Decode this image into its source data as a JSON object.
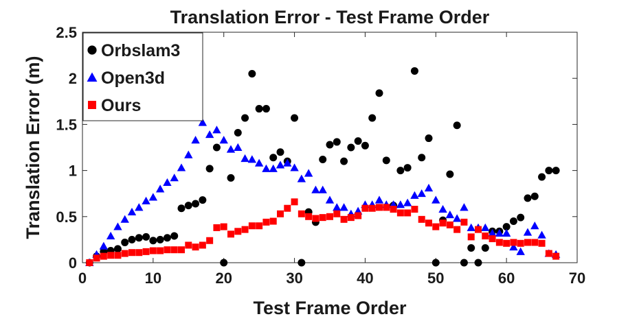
{
  "chart_data": {
    "type": "scatter",
    "title": "Translation Error - Test Frame Order",
    "xlabel": "Test Frame Order",
    "ylabel": "Translation Error (m)",
    "xlim": [
      0,
      70
    ],
    "ylim": [
      0,
      2.5
    ],
    "xticks": [
      "0",
      "10",
      "20",
      "30",
      "40",
      "50",
      "60",
      "70"
    ],
    "yticks": [
      "0",
      "0.5",
      "1",
      "1.5",
      "2",
      "2.5"
    ],
    "grid": false,
    "legend_position": "top-left",
    "series": [
      {
        "name": "Orbslam3",
        "color": "#000000",
        "marker": "circle",
        "points": [
          [
            1,
            0.0
          ],
          [
            2,
            0.07
          ],
          [
            3,
            0.12
          ],
          [
            4,
            0.13
          ],
          [
            5,
            0.15
          ],
          [
            6,
            0.22
          ],
          [
            7,
            0.25
          ],
          [
            8,
            0.27
          ],
          [
            9,
            0.28
          ],
          [
            10,
            0.24
          ],
          [
            11,
            0.25
          ],
          [
            12,
            0.27
          ],
          [
            13,
            0.29
          ],
          [
            14,
            0.59
          ],
          [
            15,
            0.62
          ],
          [
            16,
            0.64
          ],
          [
            17,
            0.68
          ],
          [
            18,
            1.02
          ],
          [
            19,
            1.25
          ],
          [
            20,
            0.0
          ],
          [
            21,
            0.92
          ],
          [
            22,
            1.41
          ],
          [
            23,
            1.57
          ],
          [
            24,
            2.05
          ],
          [
            25,
            1.67
          ],
          [
            26,
            1.67
          ],
          [
            27,
            1.14
          ],
          [
            28,
            1.2
          ],
          [
            29,
            1.1
          ],
          [
            30,
            1.57
          ],
          [
            31,
            0.0
          ],
          [
            32,
            0.55
          ],
          [
            33,
            0.44
          ],
          [
            34,
            1.12
          ],
          [
            35,
            1.28
          ],
          [
            36,
            1.31
          ],
          [
            37,
            1.1
          ],
          [
            38,
            1.25
          ],
          [
            39,
            1.32
          ],
          [
            40,
            1.27
          ],
          [
            41,
            1.57
          ],
          [
            42,
            1.84
          ],
          [
            43,
            1.11
          ],
          [
            44,
            0.62
          ],
          [
            45,
            1.0
          ],
          [
            46,
            1.03
          ],
          [
            47,
            2.08
          ],
          [
            48,
            1.14
          ],
          [
            49,
            1.35
          ],
          [
            50,
            0.0
          ],
          [
            51,
            0.46
          ],
          [
            52,
            0.96
          ],
          [
            53,
            1.49
          ],
          [
            54,
            0.0
          ],
          [
            55,
            0.16
          ],
          [
            56,
            0.0
          ],
          [
            57,
            0.16
          ],
          [
            58,
            0.34
          ],
          [
            59,
            0.34
          ],
          [
            60,
            0.39
          ],
          [
            61,
            0.45
          ],
          [
            62,
            0.49
          ],
          [
            63,
            0.7
          ],
          [
            64,
            0.72
          ],
          [
            65,
            0.93
          ],
          [
            66,
            1.0
          ],
          [
            67,
            1.0
          ]
        ]
      },
      {
        "name": "Open3d",
        "color": "#0000ff",
        "marker": "triangle",
        "points": [
          [
            1,
            0.0
          ],
          [
            2,
            0.09
          ],
          [
            3,
            0.18
          ],
          [
            4,
            0.29
          ],
          [
            5,
            0.39
          ],
          [
            6,
            0.47
          ],
          [
            7,
            0.55
          ],
          [
            8,
            0.6
          ],
          [
            9,
            0.67
          ],
          [
            10,
            0.71
          ],
          [
            11,
            0.8
          ],
          [
            12,
            0.87
          ],
          [
            13,
            0.92
          ],
          [
            14,
            1.03
          ],
          [
            15,
            1.17
          ],
          [
            16,
            1.33
          ],
          [
            17,
            1.52
          ],
          [
            18,
            1.39
          ],
          [
            19,
            1.44
          ],
          [
            20,
            1.33
          ],
          [
            21,
            1.23
          ],
          [
            22,
            1.25
          ],
          [
            23,
            1.13
          ],
          [
            24,
            1.12
          ],
          [
            25,
            1.08
          ],
          [
            26,
            1.02
          ],
          [
            27,
            1.02
          ],
          [
            28,
            1.06
          ],
          [
            29,
            1.08
          ],
          [
            30,
            1.03
          ],
          [
            31,
            0.91
          ],
          [
            32,
            0.97
          ],
          [
            33,
            0.79
          ],
          [
            34,
            0.79
          ],
          [
            35,
            0.68
          ],
          [
            36,
            0.6
          ],
          [
            37,
            0.6
          ],
          [
            38,
            0.53
          ],
          [
            39,
            0.56
          ],
          [
            40,
            0.63
          ],
          [
            41,
            0.63
          ],
          [
            42,
            0.68
          ],
          [
            43,
            0.63
          ],
          [
            44,
            0.63
          ],
          [
            45,
            0.63
          ],
          [
            46,
            0.65
          ],
          [
            47,
            0.73
          ],
          [
            48,
            0.75
          ],
          [
            49,
            0.81
          ],
          [
            50,
            0.68
          ],
          [
            51,
            0.58
          ],
          [
            52,
            0.52
          ],
          [
            53,
            0.48
          ],
          [
            54,
            0.6
          ],
          [
            55,
            0.38
          ],
          [
            56,
            0.38
          ],
          [
            57,
            0.38
          ],
          [
            58,
            0.32
          ],
          [
            59,
            0.32
          ],
          [
            60,
            0.32
          ],
          [
            61,
            0.17
          ],
          [
            62,
            0.12
          ],
          [
            63,
            0.33
          ],
          [
            64,
            0.4
          ],
          [
            65,
            0.3
          ],
          [
            66,
            0.1
          ],
          [
            67,
            0.09
          ]
        ]
      },
      {
        "name": "Ours",
        "color": "#ff0000",
        "marker": "square",
        "points": [
          [
            1,
            0.0
          ],
          [
            2,
            0.05
          ],
          [
            3,
            0.07
          ],
          [
            4,
            0.08
          ],
          [
            5,
            0.08
          ],
          [
            6,
            0.1
          ],
          [
            7,
            0.11
          ],
          [
            8,
            0.11
          ],
          [
            9,
            0.12
          ],
          [
            10,
            0.13
          ],
          [
            11,
            0.13
          ],
          [
            12,
            0.14
          ],
          [
            13,
            0.14
          ],
          [
            14,
            0.14
          ],
          [
            15,
            0.19
          ],
          [
            16,
            0.17
          ],
          [
            17,
            0.19
          ],
          [
            18,
            0.24
          ],
          [
            19,
            0.38
          ],
          [
            20,
            0.39
          ],
          [
            21,
            0.31
          ],
          [
            22,
            0.34
          ],
          [
            23,
            0.36
          ],
          [
            24,
            0.4
          ],
          [
            25,
            0.4
          ],
          [
            26,
            0.44
          ],
          [
            27,
            0.45
          ],
          [
            28,
            0.53
          ],
          [
            29,
            0.59
          ],
          [
            30,
            0.66
          ],
          [
            31,
            0.53
          ],
          [
            32,
            0.5
          ],
          [
            33,
            0.48
          ],
          [
            34,
            0.49
          ],
          [
            35,
            0.5
          ],
          [
            36,
            0.53
          ],
          [
            37,
            0.47
          ],
          [
            38,
            0.49
          ],
          [
            39,
            0.51
          ],
          [
            40,
            0.59
          ],
          [
            41,
            0.59
          ],
          [
            42,
            0.6
          ],
          [
            43,
            0.6
          ],
          [
            44,
            0.58
          ],
          [
            45,
            0.54
          ],
          [
            46,
            0.54
          ],
          [
            47,
            0.58
          ],
          [
            48,
            0.47
          ],
          [
            49,
            0.43
          ],
          [
            50,
            0.39
          ],
          [
            51,
            0.43
          ],
          [
            52,
            0.41
          ],
          [
            53,
            0.36
          ],
          [
            54,
            0.44
          ],
          [
            55,
            0.28
          ],
          [
            56,
            0.36
          ],
          [
            57,
            0.29
          ],
          [
            58,
            0.26
          ],
          [
            59,
            0.22
          ],
          [
            60,
            0.21
          ],
          [
            61,
            0.22
          ],
          [
            62,
            0.21
          ],
          [
            63,
            0.22
          ],
          [
            64,
            0.22
          ],
          [
            65,
            0.21
          ],
          [
            66,
            0.1
          ],
          [
            67,
            0.07
          ]
        ]
      }
    ]
  }
}
